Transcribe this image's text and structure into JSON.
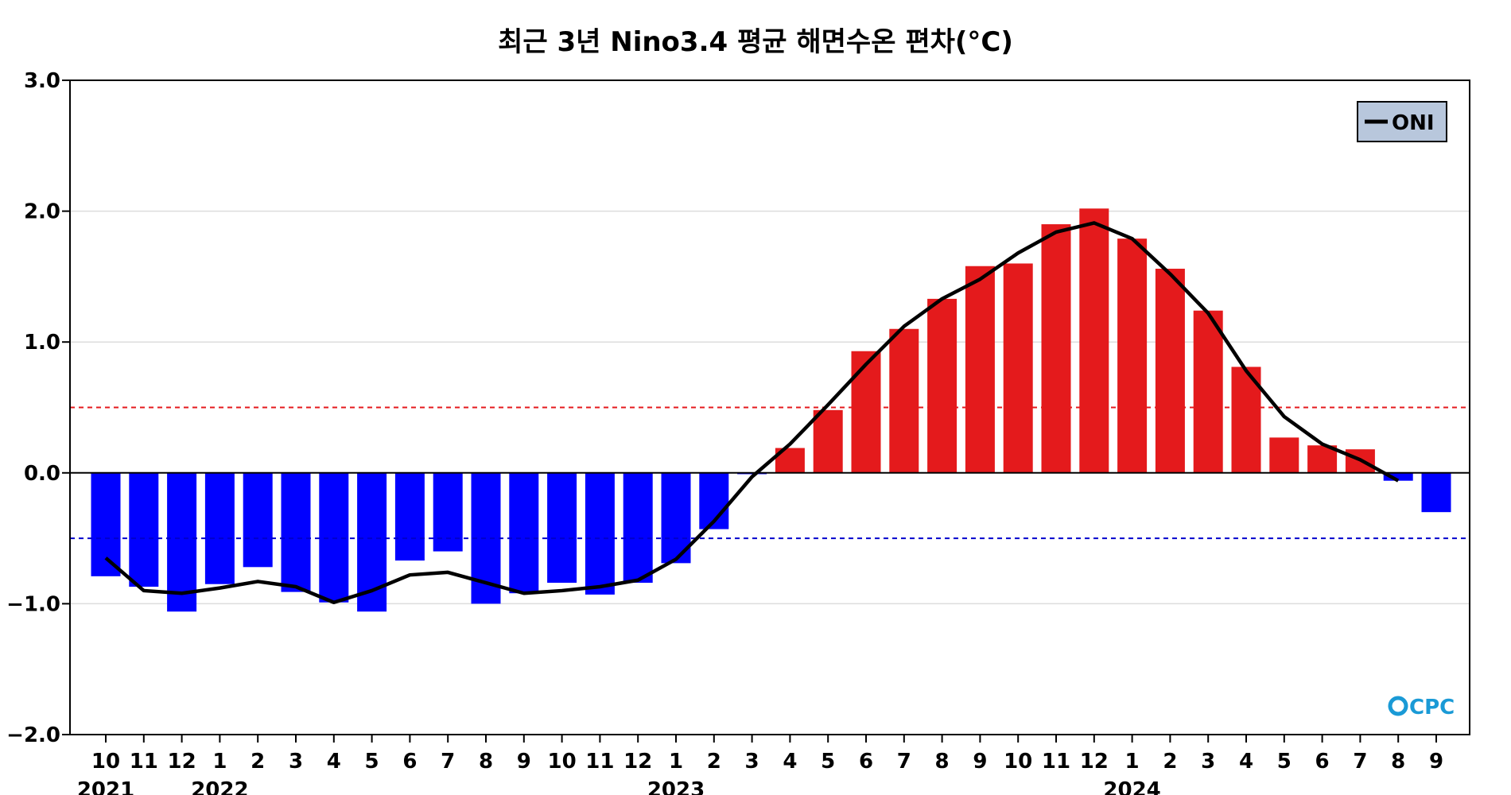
{
  "chart_data": {
    "type": "bar",
    "title": "최근 3년 Nino3.4 평균 해면수온 편차(°C)",
    "xlabel": "",
    "ylabel": "",
    "ylim": [
      -2.0,
      3.0
    ],
    "y_ticks": [
      3.0,
      2.0,
      1.0,
      0.0,
      -1.0,
      -2.0
    ],
    "y_tick_labels": [
      "3.0",
      "2.0",
      "1.0",
      "0.0",
      "−1.0",
      "−2.0"
    ],
    "grid": true,
    "categories": [
      "10",
      "11",
      "12",
      "1",
      "2",
      "3",
      "4",
      "5",
      "6",
      "7",
      "8",
      "9",
      "10",
      "11",
      "12",
      "1",
      "2",
      "3",
      "4",
      "5",
      "6",
      "7",
      "8",
      "9",
      "10",
      "11",
      "12",
      "1",
      "2",
      "3",
      "4",
      "5",
      "6",
      "7",
      "8",
      "9"
    ],
    "year_labels": [
      {
        "index": 0,
        "label": "2021"
      },
      {
        "index": 3,
        "label": "2022"
      },
      {
        "index": 15,
        "label": "2023"
      },
      {
        "index": 27,
        "label": "2024"
      }
    ],
    "series": [
      {
        "name": "Nino3.4 SST anomaly",
        "type": "bar",
        "values": [
          -0.79,
          -0.87,
          -1.06,
          -0.85,
          -0.72,
          -0.91,
          -0.99,
          -1.06,
          -0.67,
          -0.6,
          -1.0,
          -0.92,
          -0.84,
          -0.93,
          -0.84,
          -0.69,
          -0.43,
          -0.01,
          0.19,
          0.48,
          0.93,
          1.1,
          1.33,
          1.58,
          1.6,
          1.9,
          2.02,
          1.79,
          1.56,
          1.24,
          0.81,
          0.27,
          0.21,
          0.18,
          -0.06,
          -0.3
        ],
        "positive_color": "#e41a1c",
        "negative_color": "#0000ff"
      },
      {
        "name": "ONI",
        "type": "line",
        "values": [
          -0.65,
          -0.9,
          -0.92,
          -0.88,
          -0.83,
          -0.87,
          -0.99,
          -0.9,
          -0.78,
          -0.76,
          -0.84,
          -0.92,
          -0.9,
          -0.87,
          -0.82,
          -0.66,
          -0.37,
          -0.03,
          0.22,
          0.52,
          0.83,
          1.12,
          1.33,
          1.48,
          1.68,
          1.84,
          1.91,
          1.79,
          1.52,
          1.22,
          0.78,
          0.43,
          0.22,
          0.1,
          -0.06,
          null
        ],
        "color": "#000000"
      }
    ],
    "reference_lines": [
      {
        "value": 0.5,
        "color": "#e41a1c",
        "style": "dashed"
      },
      {
        "value": -0.5,
        "color": "#0000cc",
        "style": "dashed"
      },
      {
        "value": 0.0,
        "color": "#000000",
        "style": "solid"
      }
    ],
    "legend": {
      "position": "top-right",
      "entries": [
        "ONI"
      ],
      "background": "#b8c7dc"
    },
    "watermark": "CPC"
  }
}
